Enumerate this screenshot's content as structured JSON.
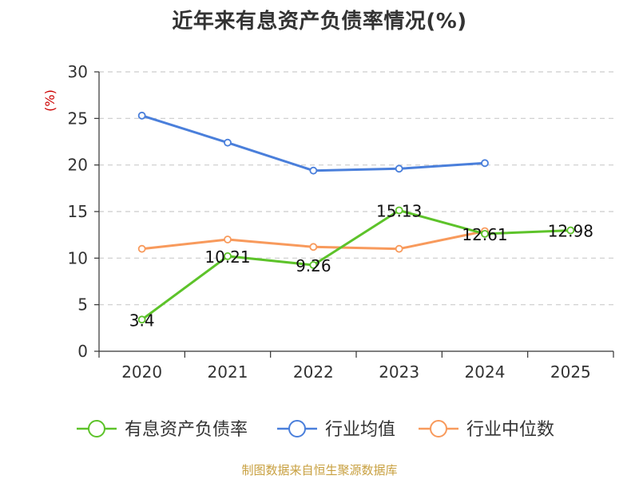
{
  "title": "近年来有息资产负债率情况(%)",
  "source_note": "制图数据来自恒生聚源数据库",
  "chart_data": {
    "type": "line",
    "title": "近年来有息资产负债率情况(%)",
    "xlabel": "",
    "ylabel": "(%)",
    "categories": [
      "2020",
      "2021",
      "2022",
      "2023",
      "2024",
      "2025"
    ],
    "ylim": [
      0,
      30
    ],
    "yticks": [
      0,
      5,
      10,
      15,
      20,
      25,
      30
    ],
    "grid": true,
    "legend_position": "bottom",
    "series": [
      {
        "name": "有息资产负债率",
        "color": "#5dc32a",
        "values": [
          3.4,
          10.21,
          9.26,
          15.13,
          12.61,
          12.98
        ],
        "show_labels": true
      },
      {
        "name": "行业均值",
        "color": "#4a7fdb",
        "values": [
          25.3,
          22.4,
          19.4,
          19.6,
          20.2,
          null
        ],
        "show_labels": false
      },
      {
        "name": "行业中位数",
        "color": "#f89a5c",
        "values": [
          11.0,
          12.0,
          11.2,
          11.0,
          12.9,
          null
        ],
        "show_labels": false
      }
    ],
    "data_labels": [
      "3.4",
      "10.21",
      "9.26",
      "15.13",
      "12.61",
      "12.98"
    ],
    "ylabel_color": "#cc0000"
  }
}
